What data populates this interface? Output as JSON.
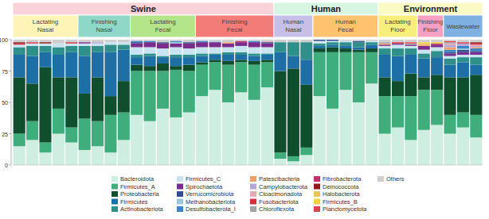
{
  "chart_data": {
    "type": "bar",
    "stacked": true,
    "tick_labels": "y",
    "ylim": [
      0,
      100
    ],
    "yticks": [
      0,
      25,
      50,
      75,
      100
    ],
    "categories": [
      null,
      null,
      null,
      null,
      null,
      null,
      null,
      null,
      null,
      null,
      null,
      null,
      null,
      null,
      null,
      null,
      null,
      null,
      null,
      null,
      null,
      null,
      null,
      null,
      null,
      null,
      null,
      null,
      null,
      null,
      null,
      null,
      null,
      null,
      null,
      null
    ],
    "groups": [
      {
        "label": "Swine",
        "color": "#f9d2da",
        "subgroups": [
          {
            "label": "Lactating Nasal",
            "count": 5,
            "color": "#fff4b8"
          },
          {
            "label": "Finishing Nasal",
            "count": 4,
            "color": "#8fd8c8"
          },
          {
            "label": "Lactating Fecal",
            "count": 5,
            "color": "#b5e58a"
          },
          {
            "label": "Finishing Fecal",
            "count": 6,
            "color": "#f47c78"
          }
        ]
      },
      {
        "label": "Human",
        "color": "#d6f5e2",
        "subgroups": [
          {
            "label": "Human Nasal",
            "count": 3,
            "color": "#c6bfe6"
          },
          {
            "label": "Human Fecal",
            "count": 5,
            "color": "#ffc26e"
          }
        ]
      },
      {
        "label": "Environment",
        "color": "#fafac4",
        "subgroups": [
          {
            "label": "Lactating Floor",
            "count": 3,
            "color": "#f7ef7c"
          },
          {
            "label": "Finishing Floor",
            "count": 2,
            "color": "#f7a0c2"
          },
          {
            "label": "Wastewater",
            "count": 3,
            "color": "#7fb0e2"
          }
        ]
      }
    ],
    "series": [
      {
        "name": "Bacteroidota",
        "color": "#cdeee0",
        "values": [
          15,
          20,
          10,
          25,
          18,
          12,
          15,
          10,
          20,
          40,
          35,
          45,
          38,
          42,
          55,
          60,
          50,
          58,
          52,
          62,
          5,
          3,
          8,
          55,
          45,
          60,
          50,
          65,
          25,
          30,
          20,
          28,
          32,
          25,
          30,
          22
        ]
      },
      {
        "name": "Firmicutes_A",
        "color": "#3fae7c",
        "values": [
          10,
          15,
          8,
          20,
          12,
          25,
          20,
          30,
          22,
          35,
          40,
          30,
          38,
          33,
          25,
          22,
          30,
          24,
          28,
          20,
          5,
          4,
          6,
          35,
          45,
          30,
          40,
          25,
          30,
          25,
          35,
          32,
          28,
          15,
          12,
          18
        ]
      },
      {
        "name": "Proteobacteria",
        "color": "#0f4f2e",
        "values": [
          45,
          30,
          60,
          25,
          40,
          20,
          35,
          15,
          25,
          5,
          4,
          6,
          3,
          5,
          2,
          2,
          3,
          2,
          3,
          2,
          65,
          70,
          50,
          3,
          4,
          3,
          2,
          3,
          15,
          12,
          18,
          10,
          12,
          30,
          28,
          32
        ]
      },
      {
        "name": "Firmicutes",
        "color": "#1d6fa6",
        "values": [
          18,
          22,
          12,
          18,
          20,
          30,
          20,
          35,
          25,
          6,
          8,
          5,
          7,
          6,
          5,
          4,
          5,
          4,
          4,
          4,
          15,
          10,
          20,
          2,
          2,
          2,
          2,
          3,
          18,
          20,
          15,
          15,
          14,
          10,
          12,
          8
        ]
      },
      {
        "name": "Actinobacteriota",
        "color": "#2f8f8a",
        "values": [
          6,
          8,
          5,
          6,
          5,
          8,
          5,
          6,
          4,
          2,
          2,
          1,
          2,
          2,
          2,
          1,
          2,
          2,
          2,
          1,
          8,
          11,
          14,
          2,
          2,
          3,
          4,
          2,
          5,
          6,
          5,
          4,
          5,
          5,
          4,
          6
        ]
      },
      {
        "name": "Firmicutes_C",
        "color": "#c9e4f0",
        "values": [
          2,
          2,
          2,
          3,
          2,
          2,
          2,
          2,
          2,
          6,
          5,
          6,
          6,
          5,
          5,
          5,
          4,
          5,
          5,
          5,
          0,
          0,
          0,
          2,
          1,
          1,
          0,
          1,
          2,
          3,
          2,
          3,
          3,
          2,
          2,
          2
        ]
      },
      {
        "name": "Spirochaetota",
        "color": "#7b2d8c",
        "values": [
          0,
          0,
          0,
          0,
          0,
          1,
          0,
          0,
          0,
          3,
          4,
          4,
          3,
          4,
          4,
          4,
          3,
          3,
          4,
          3,
          0,
          0,
          0,
          0,
          0,
          0,
          0,
          0,
          1,
          1,
          1,
          3,
          2,
          2,
          2,
          2
        ]
      },
      {
        "name": "Verrucomicrobiota",
        "color": "#34508e",
        "values": [
          0,
          0,
          0,
          0,
          0,
          0,
          0,
          0,
          0,
          1,
          0,
          1,
          0,
          1,
          0,
          0,
          0,
          0,
          0,
          1,
          0,
          0,
          0,
          1,
          1,
          0,
          1,
          0,
          0,
          0,
          0,
          0,
          0,
          1,
          2,
          1
        ]
      },
      {
        "name": "Methanobacteriota",
        "color": "#9cc7e0",
        "values": [
          0,
          0,
          0,
          0,
          0,
          0,
          0,
          0,
          0,
          0,
          0,
          0,
          1,
          0,
          0,
          1,
          0,
          0,
          0,
          0,
          0,
          0,
          0,
          0,
          0,
          0,
          0,
          0,
          0,
          0,
          0,
          0,
          0,
          0,
          1,
          0
        ]
      },
      {
        "name": "Desulfobacterota_I",
        "color": "#3a86c8",
        "values": [
          0,
          0,
          0,
          0,
          0,
          0,
          0,
          0,
          0,
          1,
          1,
          0,
          1,
          0,
          1,
          0,
          0,
          0,
          1,
          0,
          0,
          0,
          0,
          0,
          0,
          0,
          0,
          0,
          0,
          0,
          0,
          0,
          0,
          2,
          2,
          2
        ]
      },
      {
        "name": "Patescibacteria",
        "color": "#f2a066",
        "values": [
          0,
          0,
          0,
          0,
          0,
          0,
          0,
          0,
          0,
          0,
          0,
          0,
          0,
          0,
          0,
          0,
          1,
          0,
          0,
          0,
          0,
          0,
          0,
          0,
          0,
          0,
          0,
          0,
          1,
          0,
          0,
          1,
          0,
          2,
          0,
          1
        ]
      },
      {
        "name": "Campylobacterota",
        "color": "#b5a6d8",
        "values": [
          0,
          0,
          0,
          0,
          0,
          0,
          1,
          0,
          0,
          0,
          0,
          0,
          0,
          0,
          0,
          0,
          0,
          0,
          0,
          0,
          0,
          0,
          0,
          0,
          0,
          0,
          0,
          0,
          0,
          0,
          0,
          0,
          0,
          2,
          2,
          1
        ]
      },
      {
        "name": "Cloacimonadota",
        "color": "#e9a7b6",
        "values": [
          0,
          0,
          0,
          0,
          0,
          0,
          0,
          0,
          0,
          0,
          0,
          0,
          0,
          0,
          0,
          0,
          0,
          0,
          0,
          1,
          0,
          0,
          0,
          0,
          0,
          0,
          0,
          0,
          0,
          0,
          0,
          0,
          0,
          1,
          0,
          1
        ]
      },
      {
        "name": "Fusobacteriota",
        "color": "#d63040",
        "values": [
          1,
          1,
          0,
          0,
          1,
          0,
          0,
          0,
          0,
          0,
          0,
          0,
          0,
          0,
          0,
          0,
          0,
          0,
          0,
          0,
          0,
          0,
          0,
          0,
          0,
          0,
          0,
          0,
          0,
          1,
          0,
          0,
          0,
          0,
          1,
          1
        ]
      },
      {
        "name": "Chloroflexota",
        "color": "#a3a3a3",
        "values": [
          0,
          0,
          0,
          0,
          0,
          0,
          0,
          0,
          0,
          0,
          0,
          0,
          0,
          0,
          0,
          0,
          0,
          0,
          0,
          0,
          0,
          0,
          0,
          0,
          0,
          0,
          0,
          0,
          1,
          0,
          1,
          0,
          0,
          1,
          0,
          0
        ]
      },
      {
        "name": "Fibrobacterota",
        "color": "#c2306a",
        "values": [
          0,
          0,
          0,
          0,
          0,
          0,
          0,
          0,
          0,
          0,
          0,
          0,
          0,
          0,
          0,
          0,
          0,
          1,
          0,
          0,
          0,
          0,
          0,
          0,
          0,
          0,
          0,
          0,
          0,
          0,
          0,
          0,
          1,
          0,
          0,
          0
        ]
      },
      {
        "name": "Deinococcota",
        "color": "#8b1a1a",
        "values": [
          1,
          0,
          1,
          0,
          0,
          0,
          0,
          0,
          0,
          0,
          0,
          0,
          0,
          0,
          0,
          0,
          0,
          0,
          0,
          0,
          0,
          0,
          0,
          0,
          0,
          0,
          0,
          0,
          0,
          0,
          0,
          0,
          0,
          0,
          0,
          1
        ]
      },
      {
        "name": "Halobacterota",
        "color": "#e8c35e",
        "values": [
          0,
          0,
          0,
          0,
          0,
          0,
          0,
          0,
          0,
          0,
          0,
          0,
          0,
          0,
          0,
          0,
          0,
          0,
          0,
          0,
          0,
          0,
          0,
          0,
          0,
          0,
          0,
          0,
          0,
          0,
          0,
          1,
          0,
          0,
          0,
          0
        ]
      },
      {
        "name": "Firmicutes_B",
        "color": "#f4d23e",
        "values": [
          0,
          0,
          0,
          0,
          0,
          0,
          0,
          0,
          0,
          0,
          0,
          0,
          0,
          0,
          0,
          0,
          0,
          0,
          0,
          0,
          0,
          0,
          0,
          0,
          0,
          0,
          0,
          0,
          0,
          0,
          0,
          1,
          1,
          0,
          0,
          0
        ]
      },
      {
        "name": "Planctomycetota",
        "color": "#e2404e",
        "values": [
          0,
          0,
          0,
          0,
          0,
          0,
          0,
          0,
          0,
          0,
          0,
          0,
          0,
          0,
          0,
          0,
          0,
          0,
          0,
          0,
          0,
          0,
          0,
          0,
          0,
          0,
          0,
          0,
          0,
          0,
          1,
          0,
          0,
          1,
          0,
          0
        ]
      },
      {
        "name": "Others",
        "color": "#cfcfcf",
        "values": [
          2,
          2,
          2,
          3,
          2,
          2,
          2,
          2,
          2,
          1,
          1,
          2,
          1,
          2,
          1,
          1,
          2,
          1,
          1,
          1,
          2,
          2,
          2,
          0,
          0,
          1,
          1,
          1,
          2,
          2,
          2,
          2,
          2,
          1,
          2,
          2
        ]
      }
    ]
  }
}
